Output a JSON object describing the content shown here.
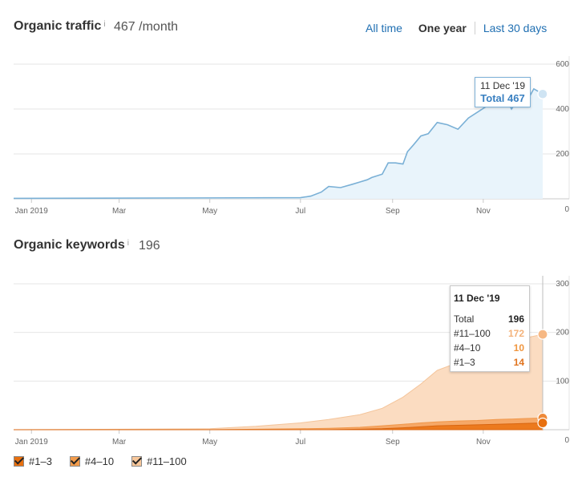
{
  "traffic": {
    "title": "Organic traffic",
    "info": "i",
    "value": "467 /month"
  },
  "range_tabs": [
    {
      "label": "All time",
      "active": false
    },
    {
      "label": "One year",
      "active": true
    },
    {
      "label": "Last 30 days",
      "active": false
    }
  ],
  "keywords": {
    "title": "Organic keywords",
    "info": "i",
    "value": "196"
  },
  "traffic_tooltip": {
    "date": "11 Dec '19",
    "total": "Total 467"
  },
  "keywords_tooltip": {
    "date": "11 Dec '19",
    "rows": [
      {
        "label": "Total",
        "value": "196",
        "color": "#222222"
      },
      {
        "label": "#11–100",
        "value": "172",
        "color": "#f6c79c"
      },
      {
        "label": "#4–10",
        "value": "10",
        "color": "#f39c4c"
      },
      {
        "label": "#1–3",
        "value": "14",
        "color": "#e0731d"
      }
    ]
  },
  "legend": [
    {
      "label": "#1–3",
      "color": "#e8700f"
    },
    {
      "label": "#4–10",
      "color": "#f39c4c"
    },
    {
      "label": "#11–100",
      "color": "#f8c79a"
    }
  ],
  "colors": {
    "traffic_line": "#7ab0d6",
    "traffic_fill": "#e9f4fb",
    "kw_top100": "#fbdcc1",
    "kw_top10": "#f6a867",
    "kw_top3": "#ec7a1e"
  },
  "chart_data": [
    {
      "type": "area",
      "title": "Organic traffic",
      "x_tick_labels": [
        "Jan 2019",
        "Mar",
        "May",
        "Jul",
        "Sep",
        "Nov"
      ],
      "y_ticks": [
        0,
        200,
        400,
        600
      ],
      "ylim": [
        0,
        600
      ],
      "x_dates": [
        "2018-12-20",
        "2019-07-01",
        "2019-07-08",
        "2019-07-15",
        "2019-07-20",
        "2019-07-28",
        "2019-08-05",
        "2019-08-10",
        "2019-08-15",
        "2019-08-18",
        "2019-08-25",
        "2019-08-29",
        "2019-09-03",
        "2019-09-08",
        "2019-09-11",
        "2019-09-15",
        "2019-09-20",
        "2019-09-25",
        "2019-10-01",
        "2019-10-08",
        "2019-10-15",
        "2019-10-22",
        "2019-10-29",
        "2019-11-05",
        "2019-11-12",
        "2019-11-17",
        "2019-11-20",
        "2019-11-25",
        "2019-11-30",
        "2019-12-05",
        "2019-12-11"
      ],
      "series": [
        {
          "values": [
            2,
            5,
            12,
            30,
            55,
            50,
            65,
            75,
            85,
            95,
            110,
            160,
            160,
            155,
            210,
            240,
            280,
            290,
            340,
            330,
            310,
            360,
            390,
            420,
            460,
            440,
            400,
            450,
            430,
            490,
            467
          ]
        }
      ],
      "legend": "none",
      "grid": true
    },
    {
      "type": "area",
      "title": "Organic keywords",
      "x_tick_labels": [
        "Jan 2019",
        "Mar",
        "May",
        "Jul",
        "Sep",
        "Nov"
      ],
      "y_ticks": [
        0,
        100,
        200,
        300
      ],
      "ylim": [
        0,
        300
      ],
      "x_dates": [
        "2018-12-20",
        "2019-05-01",
        "2019-06-01",
        "2019-07-01",
        "2019-07-20",
        "2019-08-10",
        "2019-08-25",
        "2019-09-08",
        "2019-09-20",
        "2019-10-01",
        "2019-10-15",
        "2019-10-28",
        "2019-11-10",
        "2019-11-20",
        "2019-11-30",
        "2019-12-11"
      ],
      "series": [
        {
          "name": "#1–3",
          "values": [
            0,
            0,
            0,
            0,
            0,
            1,
            2,
            4,
            6,
            8,
            9,
            10,
            11,
            12,
            13,
            14
          ]
        },
        {
          "name": "#4–10",
          "values": [
            0,
            0,
            1,
            2,
            3,
            4,
            6,
            7,
            8,
            8,
            9,
            9,
            10,
            10,
            10,
            10
          ]
        },
        {
          "name": "#11–100",
          "values": [
            0,
            2,
            6,
            12,
            18,
            26,
            36,
            56,
            80,
            106,
            120,
            134,
            150,
            160,
            166,
            172
          ]
        }
      ],
      "stacked": true,
      "legend": "bottom-left",
      "grid": true
    }
  ]
}
